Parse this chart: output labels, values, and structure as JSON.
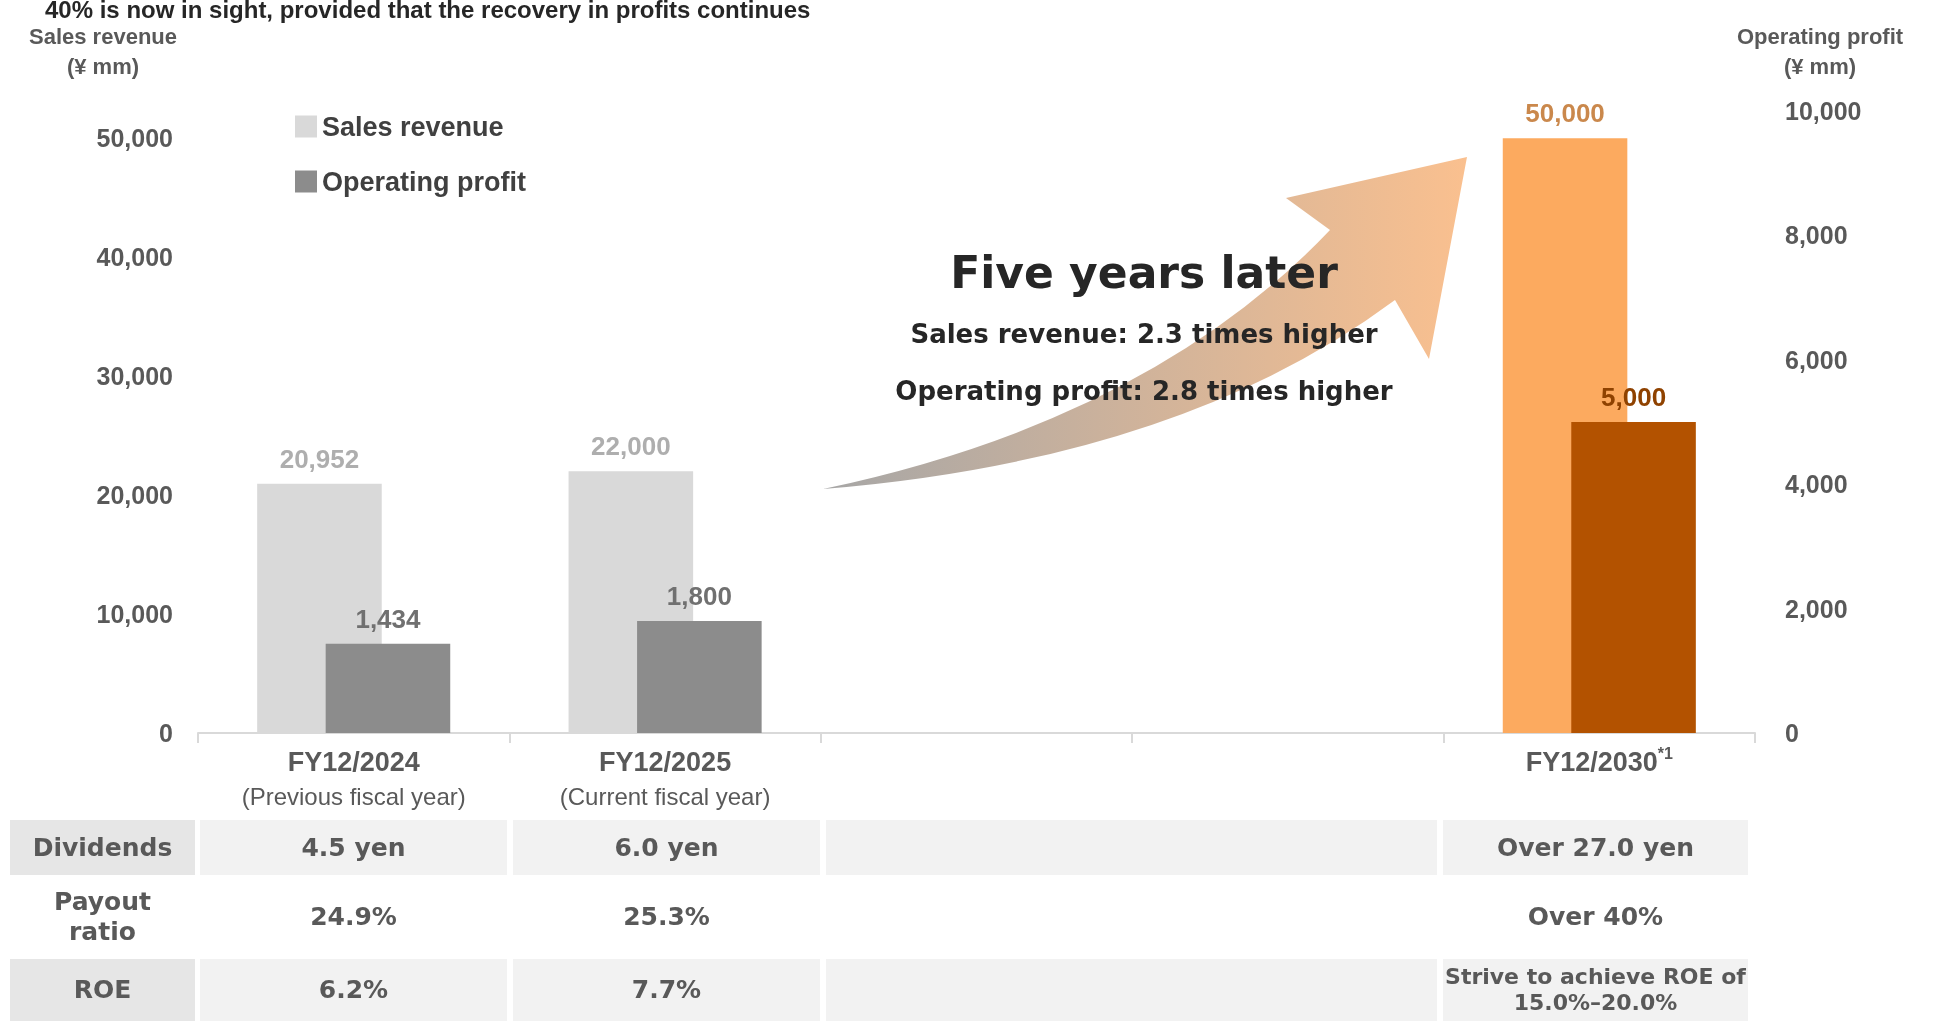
{
  "chart_data": [
    {
      "type": "bar",
      "title": "40% is now in sight, provided that the recovery in profits continues",
      "ylabel": "Sales revenue\n(¥ mm)",
      "y2label": "Operating profit\n(¥ mm)",
      "categories": [
        "FY12/2024\n(Previous fiscal year)",
        "FY12/2025\n(Current fiscal year)",
        null,
        null,
        "FY12/2030$^{*1}$"
      ],
      "series": [
        {
          "name": "Sales revenue",
          "color": "#d9d9d9",
          "colors": [
            "#d9d9d9",
            "#d9d9d9",
            null,
            null,
            "#fcaa5f"
          ],
          "values": [
            20952,
            22000,
            null,
            null,
            50000
          ],
          "value_labels": [
            "20,952",
            "22,000",
            null,
            null,
            "50,000"
          ]
        },
        {
          "name": "Operating profit",
          "axis": "y2",
          "color": "#8c8c8c",
          "colors": [
            "#8c8c8c",
            "#8c8c8c",
            null,
            null,
            "#b35200"
          ],
          "values": [
            1434,
            1800,
            null,
            null,
            5000
          ],
          "value_labels": [
            "1,434",
            "1,800",
            null,
            null,
            "5,000"
          ]
        }
      ],
      "ylim": [
        0,
        52300
      ],
      "yticks": [
        0,
        {
          "value": 10000,
          "label": "10,000"
        },
        {
          "value": 20000,
          "label": "20,000"
        },
        {
          "value": 30000,
          "label": "30,000"
        },
        {
          "value": 40000,
          "label": "40,000"
        },
        {
          "value": 50000,
          "label": "50,000"
        }
      ],
      "y2lim": [
        0,
        10000
      ],
      "y2ticks": [
        0,
        {
          "value": 2000,
          "label": "2,000"
        },
        {
          "value": 4000,
          "label": "4,000"
        },
        {
          "value": 6000,
          "label": "6,000"
        },
        {
          "value": 8000,
          "label": "8,000"
        },
        {
          "value": 10000,
          "label": "10,000"
        }
      ],
      "legend": "top left",
      "grid": false,
      "annotations": [
        "Five years later",
        "Sales revenue: 2.3 times higher",
        "Operating profit: 2.8 times higher"
      ]
    },
    {
      "type": "other",
      "annotations": [
        "Dividends",
        "4.5 yen",
        "6.0 yen",
        "Over 27.0 yen",
        "Payout\nratio",
        "24.9%",
        "25.3%",
        "Over 40%",
        "ROE",
        "6.2%",
        "7.7%",
        "Strive to achieve ROE of\n15.0%–20.0%"
      ]
    }
  ]
}
